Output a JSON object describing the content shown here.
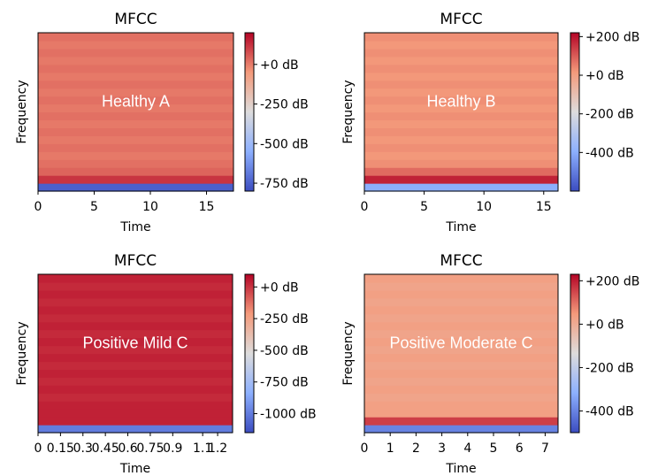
{
  "chart_data": [
    {
      "type": "heatmap",
      "title": "MFCC",
      "xlabel": "Time",
      "ylabel": "Frequency",
      "label": "Healthy A",
      "xlim": [
        0,
        17.4
      ],
      "x_ticks": [
        0,
        5,
        10,
        15
      ],
      "x_tick_labels": [
        "0",
        "5",
        "10",
        "15"
      ],
      "colorbar": {
        "min": -800,
        "max": 200,
        "ticks": [
          0,
          -250,
          -500,
          -750
        ],
        "tick_labels": [
          "+0 dB",
          "-250 dB",
          "-500 dB",
          "-750 dB"
        ]
      },
      "rows": [
        {
          "band": "coef-1 (bottom)",
          "value": -750
        },
        {
          "band": "coef-2",
          "value": 120
        },
        {
          "band": "coef-3",
          "value": 40
        },
        {
          "band": "coef-4..20",
          "value": 20
        }
      ]
    },
    {
      "type": "heatmap",
      "title": "MFCC",
      "xlabel": "Time",
      "ylabel": "Frequency",
      "label": "Healthy B",
      "xlim": [
        0,
        16.2
      ],
      "x_ticks": [
        0,
        5,
        10,
        15
      ],
      "x_tick_labels": [
        "0",
        "5",
        "10",
        "15"
      ],
      "colorbar": {
        "min": -600,
        "max": 220,
        "ticks": [
          200,
          0,
          -200,
          -400
        ],
        "tick_labels": [
          "+200 dB",
          "+0 dB",
          "-200 dB",
          "-400 dB"
        ]
      },
      "rows": [
        {
          "band": "coef-1 (bottom)",
          "value": -400
        },
        {
          "band": "coef-2",
          "value": 180
        },
        {
          "band": "coef-3",
          "value": 80
        },
        {
          "band": "coef-4..20",
          "value": 30
        }
      ]
    },
    {
      "type": "heatmap",
      "title": "MFCC",
      "xlabel": "Time",
      "ylabel": "Frequency",
      "label": "Positive Mild C",
      "xlim": [
        0,
        1.3
      ],
      "x_ticks": [
        0,
        0.15,
        0.3,
        0.45,
        0.6,
        0.75,
        0.9,
        1.1,
        1.2
      ],
      "x_tick_labels": [
        "0",
        "0.15",
        "0.3",
        "0.45",
        "0.6",
        "0.75",
        "0.9",
        "1.1",
        "1.2"
      ],
      "colorbar": {
        "min": -1150,
        "max": 100,
        "ticks": [
          0,
          -250,
          -500,
          -750,
          -1000
        ],
        "tick_labels": [
          "+0 dB",
          "-250 dB",
          "-500 dB",
          "-750 dB",
          "-1000 dB"
        ]
      },
      "rows": [
        {
          "band": "coef-1 (bottom)",
          "value": -1000
        },
        {
          "band": "coef-2..20",
          "value": 40
        }
      ]
    },
    {
      "type": "heatmap",
      "title": "MFCC",
      "xlabel": "Time",
      "ylabel": "Frequency",
      "label": "Positive Moderate C",
      "xlim": [
        0,
        7.5
      ],
      "x_ticks": [
        0,
        1,
        2,
        3,
        4,
        5,
        6,
        7
      ],
      "x_tick_labels": [
        "0",
        "1",
        "2",
        "3",
        "4",
        "5",
        "6",
        "7"
      ],
      "colorbar": {
        "min": -500,
        "max": 230,
        "ticks": [
          200,
          0,
          -200,
          -400
        ],
        "tick_labels": [
          "+200 dB",
          "+0 dB",
          "-200 dB",
          "-400 dB"
        ]
      },
      "rows": [
        {
          "band": "coef-1 (bottom)",
          "value": -400
        },
        {
          "band": "coef-2",
          "value": 160
        },
        {
          "band": "coef-3..20",
          "value": 30
        }
      ]
    }
  ]
}
